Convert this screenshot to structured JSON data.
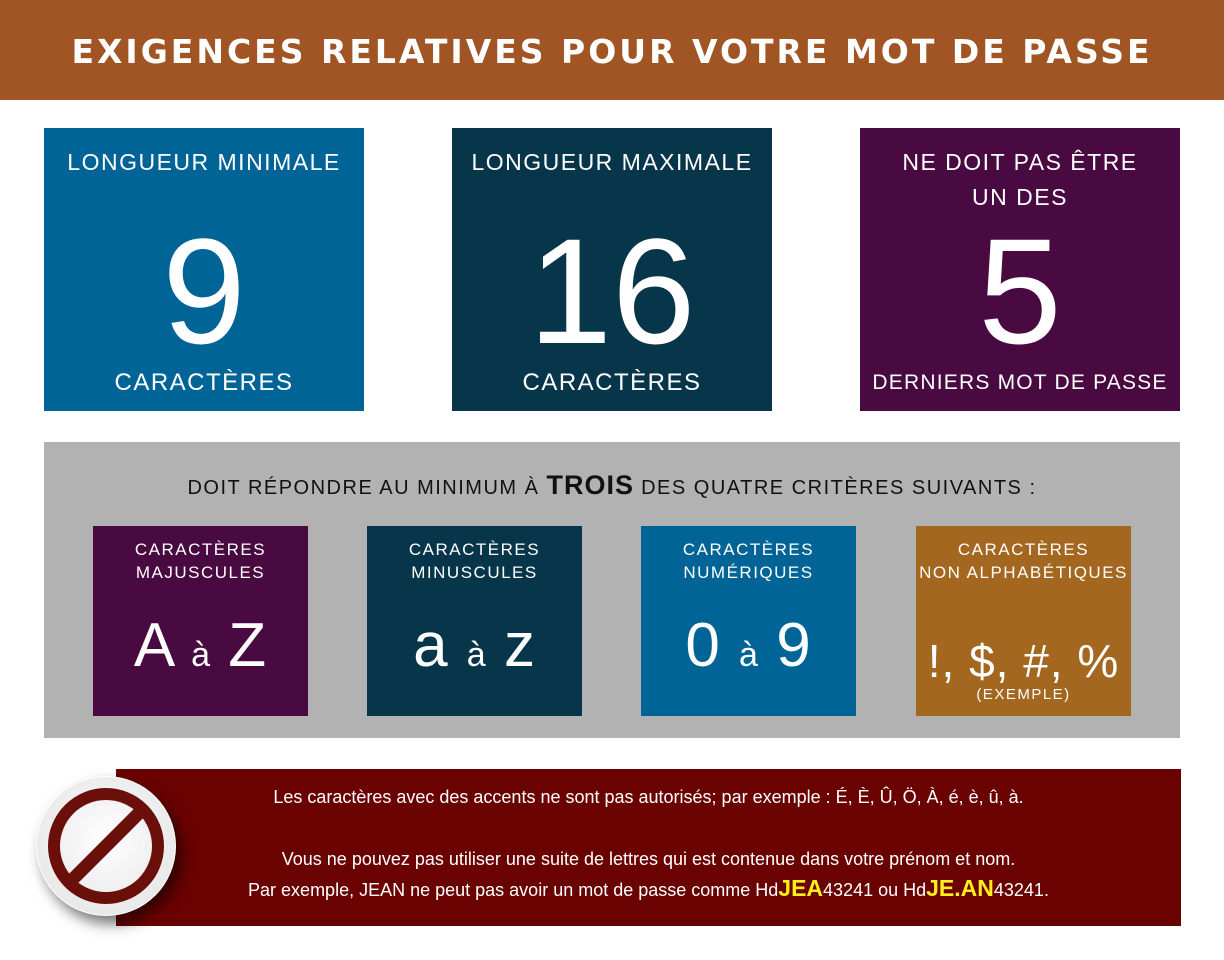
{
  "header": {
    "title": "EXIGENCES RELATIVES POUR VOTRE MOT DE PASSE"
  },
  "boxes": [
    {
      "top": "LONGUEUR MINIMALE",
      "value": "9",
      "bottom": "CARACTÈRES"
    },
    {
      "top": "LONGUEUR MAXIMALE",
      "value": "16",
      "bottom": "CARACTÈRES"
    },
    {
      "top_line1": "NE DOIT PAS ÊTRE",
      "top_line2": "UN DES",
      "value": "5",
      "bottom": "DERNIERS MOT DE PASSE"
    }
  ],
  "criteria": {
    "heading_before": "DOIT RÉPONDRE AU MINIMUM À ",
    "heading_bold": "TROIS",
    "heading_after": " DES QUATRE CRITÈRES SUIVANTS :",
    "items": [
      {
        "line1": "CARACTÈRES",
        "line2": "MAJUSCULES",
        "from": "A",
        "sep": "à",
        "to": "Z"
      },
      {
        "line1": "CARACTÈRES",
        "line2": "MINUSCULES",
        "from": "a",
        "sep": "à",
        "to": "z"
      },
      {
        "line1": "CARACTÈRES",
        "line2": "NUMÉRIQUES",
        "from": "0",
        "sep": "à",
        "to": "9"
      },
      {
        "line1": "CARACTÈRES",
        "line2": "NON ALPHABÉTIQUES",
        "symbols": "!, $, #, %",
        "note": "(EXEMPLE)"
      }
    ]
  },
  "warning": {
    "line1": "Les caractères avec des accents ne sont pas autorisés; par exemple : É, È, Û, Ö, À, é, è, û, à.",
    "line2": "Vous ne pouvez pas utiliser une suite de lettres qui est contenue dans votre prénom et nom.",
    "line3_a": "Par exemple, JEAN ne peut pas avoir un mot de passe comme Hd",
    "line3_hl1": "JEA",
    "line3_b": "43241 ou Hd",
    "line3_hl2": "JE.AN",
    "line3_c": "43241."
  },
  "icons": {
    "warning_icon": "no-entry-icon"
  },
  "colors": {
    "header": "#a15524",
    "blue": "#016496",
    "navy": "#073549",
    "purple": "#480a40",
    "ochre": "#a3671f",
    "panel": "#b2b2b2",
    "warning": "#6b0202",
    "highlight": "#ffef1a"
  }
}
